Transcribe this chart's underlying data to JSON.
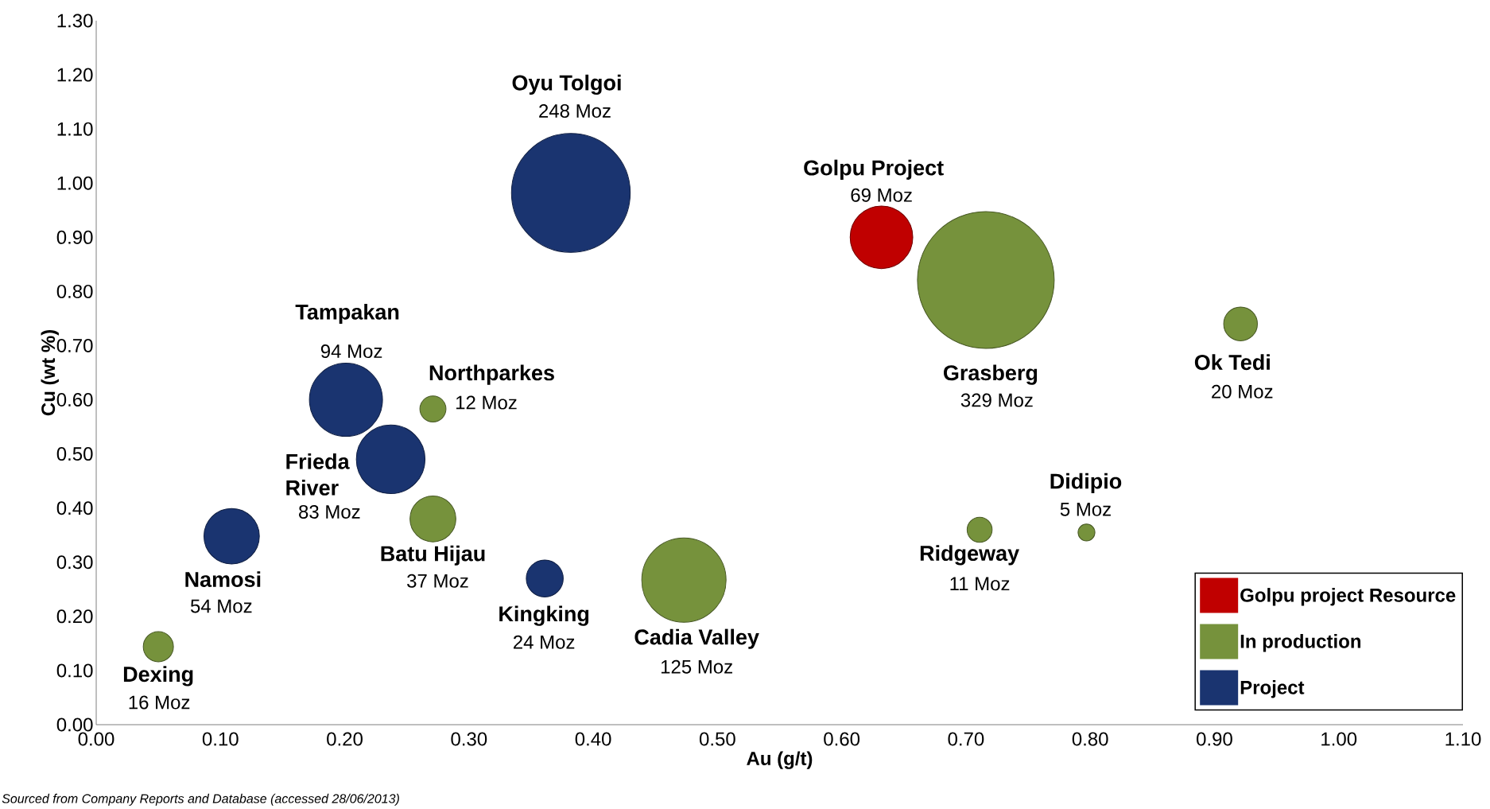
{
  "chart_data": {
    "type": "bubble",
    "xlabel": "Au (g/t)",
    "ylabel": "Cu (wt %)",
    "xlim": [
      0,
      1.1
    ],
    "ylim": [
      0,
      1.3
    ],
    "xticks": [
      {
        "value": 0,
        "label": "0.00"
      },
      {
        "value": 0.1,
        "label": "0.10"
      },
      {
        "value": 0.2,
        "label": "0.20"
      },
      {
        "value": 0.3,
        "label": "0.30"
      },
      {
        "value": 0.4,
        "label": "0.40"
      },
      {
        "value": 0.5,
        "label": "0.50"
      },
      {
        "value": 0.6,
        "label": "0.60"
      },
      {
        "value": 0.7,
        "label": "0.70"
      },
      {
        "value": 0.8,
        "label": "0.80"
      },
      {
        "value": 0.9,
        "label": "0.90"
      },
      {
        "value": 1.0,
        "label": "1.00"
      },
      {
        "value": 1.1,
        "label": "1.10"
      }
    ],
    "yticks": [
      {
        "value": 0,
        "label": "0.00"
      },
      {
        "value": 0.1,
        "label": "0.10"
      },
      {
        "value": 0.2,
        "label": "0.20"
      },
      {
        "value": 0.3,
        "label": "0.30"
      },
      {
        "value": 0.4,
        "label": "0.40"
      },
      {
        "value": 0.5,
        "label": "0.50"
      },
      {
        "value": 0.6,
        "label": "0.60"
      },
      {
        "value": 0.7,
        "label": "0.70"
      },
      {
        "value": 0.8,
        "label": "0.80"
      },
      {
        "value": 0.9,
        "label": "0.90"
      },
      {
        "value": 1.0,
        "label": "1.00"
      },
      {
        "value": 1.1,
        "label": "1.10"
      },
      {
        "value": 1.2,
        "label": "1.20"
      },
      {
        "value": 1.3,
        "label": "1.30"
      }
    ],
    "legend": "bottom right",
    "series": [
      {
        "name": "Golpu project Resource",
        "color": "#c00000",
        "x": [
          0.632
        ],
        "values": [
          0.9
        ],
        "sizes": [
          69
        ],
        "value_labels": [
          "69 Moz"
        ]
      },
      {
        "name": "In production",
        "color": "#76923c",
        "x": [
          0.716,
          0.921,
          0.271,
          0.271,
          0.473,
          0.05,
          0.711,
          0.797
        ],
        "values": [
          0.821,
          0.74,
          0.583,
          0.38,
          0.267,
          0.144,
          0.36,
          0.355
        ],
        "sizes": [
          329,
          20,
          12,
          37,
          125,
          16,
          11,
          5
        ],
        "value_labels": [
          "329 Moz",
          "20 Moz",
          "12 Moz",
          "37 Moz",
          "125 Moz",
          "16 Moz",
          "11 Moz",
          "5 Moz"
        ]
      },
      {
        "name": "Project",
        "color": "#1a3470",
        "x": [
          0.382,
          0.201,
          0.237,
          0.109,
          0.361
        ],
        "values": [
          0.982,
          0.6,
          0.49,
          0.348,
          0.27
        ],
        "sizes": [
          248,
          94,
          83,
          54,
          24
        ],
        "value_labels": [
          "248 Moz",
          "94 Moz",
          "83 Moz",
          "54 Moz",
          "24 Moz"
        ]
      }
    ],
    "annotations": [
      "Golpu Project",
      "Grasberg",
      "Ok Tedi",
      "Northparkes",
      "Batu Hijau",
      "Cadia Valley",
      "Dexing",
      "Ridgeway",
      "Didipio",
      "Oyu Tolgoi",
      "Tampakan",
      "Frieda River",
      "Namosi",
      "Kingking",
      "Sourced from Company Reports and Database (accessed 28/06/2013)"
    ]
  }
}
